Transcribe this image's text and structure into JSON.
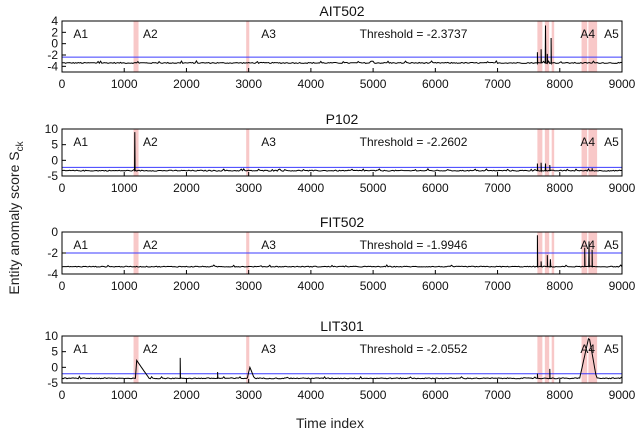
{
  "figure": {
    "xlabel": "Time index",
    "ylabel_main": "Entity anomaly score S",
    "ylabel_sub": "ck"
  },
  "colors": {
    "series": "#000000",
    "threshold": "#3b3bff",
    "attack_band": "#f8c8c8",
    "axes": "#000000"
  },
  "chart_data": [
    {
      "type": "line",
      "title": "AIT502",
      "threshold_label": "Threshold = -2.3737",
      "threshold": -2.3737,
      "xlim": [
        0,
        9000
      ],
      "ylim": [
        -5,
        4
      ],
      "yticks": [
        4,
        2,
        0,
        -2,
        -4
      ],
      "xticks": [
        0,
        1000,
        2000,
        3000,
        4000,
        5000,
        6000,
        7000,
        8000,
        9000
      ],
      "attack_labels": [
        {
          "label": "A1",
          "x": 300
        },
        {
          "label": "A2",
          "x": 1420
        },
        {
          "label": "A3",
          "x": 3320
        },
        {
          "label": "A4",
          "x": 8450
        },
        {
          "label": "A5",
          "x": 8830
        }
      ],
      "attack_regions": [
        [
          1150,
          1230
        ],
        [
          2960,
          3010
        ],
        [
          7640,
          7720
        ],
        [
          7760,
          7830
        ],
        [
          7870,
          7910
        ],
        [
          8350,
          8440
        ],
        [
          8460,
          8600
        ]
      ],
      "baseline": -3.4,
      "spikes": [
        [
          7640,
          -1.5
        ],
        [
          7700,
          -1.0
        ],
        [
          7770,
          3.2
        ],
        [
          7800,
          -1.8
        ],
        [
          7860,
          1.0
        ]
      ]
    },
    {
      "type": "line",
      "title": "P102",
      "threshold_label": "Threshold = -2.2602",
      "threshold": -2.2602,
      "xlim": [
        0,
        9000
      ],
      "ylim": [
        -5,
        10
      ],
      "yticks": [
        10,
        5,
        0,
        -5
      ],
      "xticks": [
        0,
        1000,
        2000,
        3000,
        4000,
        5000,
        6000,
        7000,
        8000,
        9000
      ],
      "attack_labels": [
        {
          "label": "A1",
          "x": 300
        },
        {
          "label": "A2",
          "x": 1420
        },
        {
          "label": "A3",
          "x": 3320
        },
        {
          "label": "A4",
          "x": 8450
        },
        {
          "label": "A5",
          "x": 8830
        }
      ],
      "attack_regions": [
        [
          1150,
          1230
        ],
        [
          2960,
          3010
        ],
        [
          7640,
          7720
        ],
        [
          7760,
          7830
        ],
        [
          7870,
          7910
        ],
        [
          8350,
          8440
        ],
        [
          8460,
          8600
        ]
      ],
      "baseline": -3.3,
      "spikes": [
        [
          1170,
          9.0
        ],
        [
          7640,
          -1.0
        ],
        [
          7700,
          -0.8
        ],
        [
          7770,
          -1.0
        ],
        [
          7840,
          -1.5
        ],
        [
          8520,
          -2.5
        ]
      ]
    },
    {
      "type": "line",
      "title": "FIT502",
      "threshold_label": "Threshold = -1.9946",
      "threshold": -1.9946,
      "xlim": [
        0,
        9000
      ],
      "ylim": [
        -4,
        0
      ],
      "yticks": [
        0,
        -2,
        -4
      ],
      "xticks": [
        0,
        1000,
        2000,
        3000,
        4000,
        5000,
        6000,
        7000,
        8000,
        9000
      ],
      "attack_labels": [
        {
          "label": "A1",
          "x": 300
        },
        {
          "label": "A2",
          "x": 1420
        },
        {
          "label": "A3",
          "x": 3320
        },
        {
          "label": "A4",
          "x": 8450
        },
        {
          "label": "A5",
          "x": 8830
        }
      ],
      "attack_regions": [
        [
          1150,
          1230
        ],
        [
          2960,
          3010
        ],
        [
          7640,
          7720
        ],
        [
          7760,
          7830
        ],
        [
          7870,
          7910
        ],
        [
          8350,
          8440
        ],
        [
          8460,
          8600
        ]
      ],
      "baseline": -3.3,
      "spikes": [
        [
          7640,
          -0.3
        ],
        [
          7700,
          -2.8
        ],
        [
          7800,
          -2.2
        ],
        [
          7850,
          -2.6
        ],
        [
          8400,
          -1.5
        ],
        [
          8470,
          -0.9
        ],
        [
          8520,
          -1.7
        ]
      ]
    },
    {
      "type": "line",
      "title": "LIT301",
      "threshold_label": "Threshold = -2.0552",
      "threshold": -2.0552,
      "xlim": [
        0,
        9000
      ],
      "ylim": [
        -5,
        10
      ],
      "yticks": [
        10,
        5,
        0,
        -5
      ],
      "xticks": [
        0,
        1000,
        2000,
        3000,
        4000,
        5000,
        6000,
        7000,
        8000,
        9000
      ],
      "attack_labels": [
        {
          "label": "A1",
          "x": 300
        },
        {
          "label": "A2",
          "x": 1420
        },
        {
          "label": "A3",
          "x": 3320
        },
        {
          "label": "A4",
          "x": 8450
        },
        {
          "label": "A5",
          "x": 8830
        }
      ],
      "attack_regions": [
        [
          1150,
          1230
        ],
        [
          2960,
          3010
        ],
        [
          7640,
          7720
        ],
        [
          7760,
          7830
        ],
        [
          7870,
          7910
        ],
        [
          8350,
          8440
        ],
        [
          8460,
          8600
        ]
      ],
      "baseline": -3.5,
      "spikes": [
        [
          1900,
          3.0
        ],
        [
          2500,
          -1.5
        ],
        [
          7640,
          -2.0
        ],
        [
          7840,
          -0.5
        ]
      ],
      "bumps": [
        {
          "start": 1180,
          "peak": 1200,
          "end": 1400,
          "height": 2.2
        },
        {
          "start": 2990,
          "peak": 3010,
          "end": 3090,
          "height": 0.5
        },
        {
          "start": 8320,
          "peak": 8470,
          "end": 8590,
          "height": 10
        }
      ]
    }
  ]
}
